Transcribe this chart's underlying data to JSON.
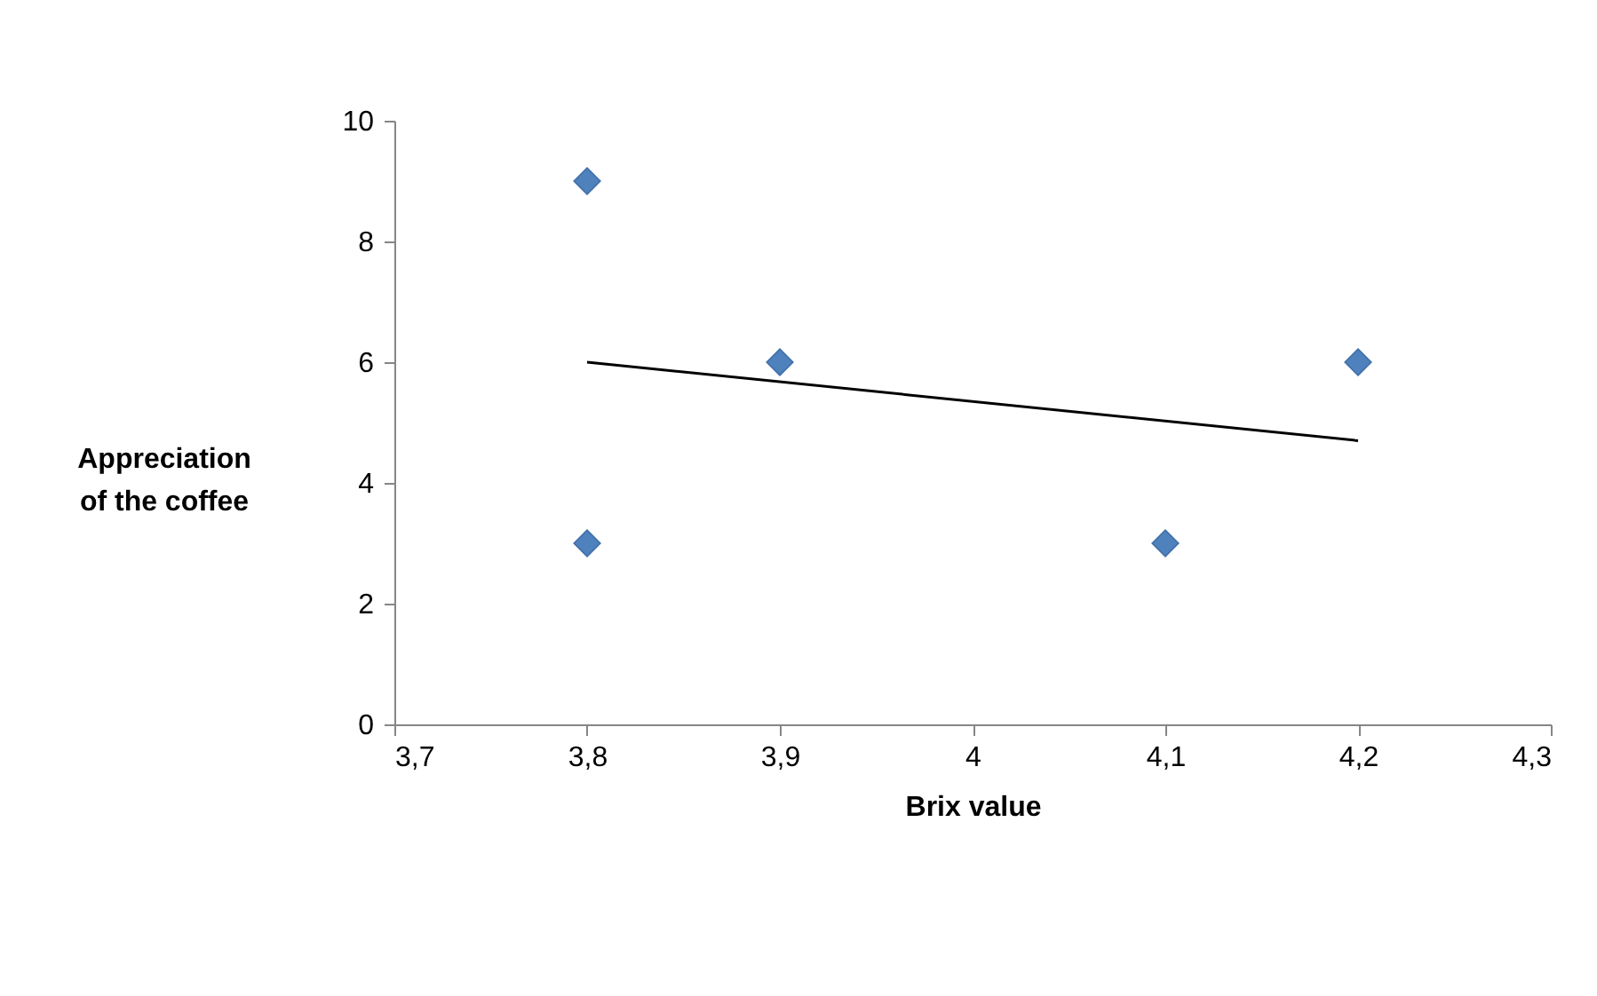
{
  "chart_data": {
    "type": "scatter",
    "xlabel": "Brix value",
    "ylabel": "Appreciation of the coffee",
    "series": [
      {
        "type": "scatter",
        "color": "#4f81bd",
        "marker": "diamond",
        "x": [
          3.8,
          3.8,
          3.9,
          4.1,
          4.2
        ],
        "values": [
          9,
          3,
          6,
          3,
          6
        ]
      },
      {
        "type": "line",
        "color": "#000000",
        "marker": "none",
        "x": [
          3.8,
          4.2
        ],
        "values": [
          6.0,
          4.7
        ]
      }
    ],
    "xlim": [
      3.7,
      4.3
    ],
    "xticks": [
      {
        "value": 3.7,
        "label": "3,7"
      },
      {
        "value": 3.8,
        "label": "3,8"
      },
      {
        "value": 3.9,
        "label": "3,9"
      },
      {
        "value": 4,
        "label": "4"
      },
      {
        "value": 4.1,
        "label": "4,1"
      },
      {
        "value": 4.2,
        "label": "4,2"
      },
      {
        "value": 4.3,
        "label": "4,3"
      }
    ],
    "ylim": [
      0,
      10
    ],
    "yticks": [
      0,
      2,
      4,
      6,
      8,
      10
    ],
    "grid": false
  }
}
